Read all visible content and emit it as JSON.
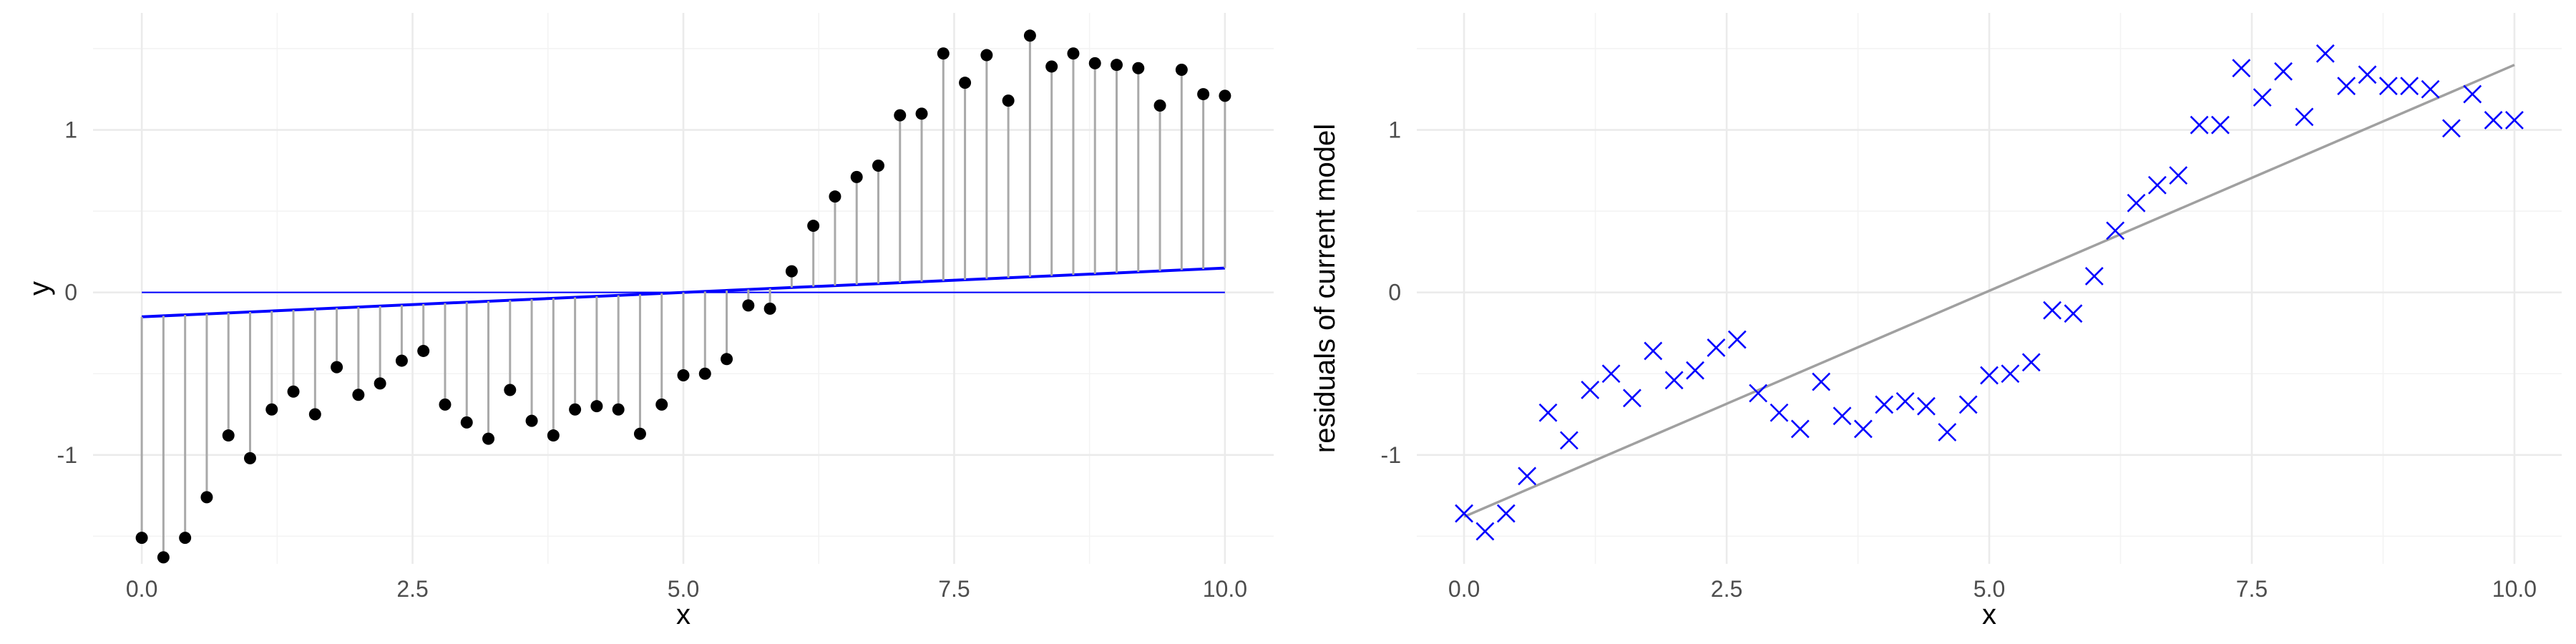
{
  "chart_data": [
    {
      "type": "scatter",
      "xlabel": "x",
      "ylabel": "y",
      "xlim": [
        -0.45,
        10.45
      ],
      "ylim": [
        -1.67,
        1.72
      ],
      "x_ticks": [
        0,
        2.5,
        5,
        7.5,
        10
      ],
      "x_tick_labels": [
        "0.0",
        "2.5",
        "5.0",
        "7.5",
        "10.0"
      ],
      "y_ticks": [
        -1,
        0,
        1
      ],
      "y_tick_labels": [
        "-1",
        "0",
        "1"
      ],
      "grid": true,
      "x": [
        0.0,
        0.2,
        0.4,
        0.6,
        0.8,
        1.0,
        1.2,
        1.4,
        1.6,
        1.8,
        2.0,
        2.2,
        2.4,
        2.6,
        2.8,
        3.0,
        3.2,
        3.4,
        3.6,
        3.8,
        4.0,
        4.2,
        4.4,
        4.6,
        4.8,
        5.0,
        5.2,
        5.4,
        5.6,
        5.8,
        6.0,
        6.2,
        6.4,
        6.6,
        6.8,
        7.0,
        7.2,
        7.4,
        7.6,
        7.8,
        8.0,
        8.2,
        8.4,
        8.6,
        8.8,
        9.0,
        9.2,
        9.4,
        9.6,
        9.8,
        10.0
      ],
      "series": [
        {
          "type": "stem",
          "color": "#000000",
          "y": [
            -1.51,
            -1.63,
            -1.51,
            -1.26,
            -0.88,
            -1.02,
            -0.72,
            -0.61,
            -0.75,
            -0.46,
            -0.63,
            -0.56,
            -0.42,
            -0.36,
            -0.69,
            -0.8,
            -0.9,
            -0.6,
            -0.79,
            -0.88,
            -0.72,
            -0.7,
            -0.72,
            -0.87,
            -0.69,
            -0.51,
            -0.5,
            -0.41,
            -0.08,
            -0.1,
            0.13,
            0.41,
            0.59,
            0.71,
            0.78,
            1.09,
            1.1,
            1.47,
            1.29,
            1.46,
            1.18,
            1.58,
            1.39,
            1.47,
            1.41,
            1.4,
            1.38,
            1.15,
            1.37,
            1.22,
            1.21
          ]
        },
        {
          "type": "line",
          "color": "#0000ff",
          "x": [
            0,
            10
          ],
          "y": [
            -0.15,
            0.15
          ]
        },
        {
          "type": "hline",
          "color": "#0000ff",
          "y": 0
        }
      ]
    },
    {
      "type": "scatter",
      "xlabel": "x",
      "ylabel": "residuals of current model",
      "xlim": [
        -0.45,
        10.45
      ],
      "ylim": [
        -1.67,
        1.72
      ],
      "x_ticks": [
        0,
        2.5,
        5,
        7.5,
        10
      ],
      "x_tick_labels": [
        "0.0",
        "2.5",
        "5.0",
        "7.5",
        "10.0"
      ],
      "y_ticks": [
        -1,
        0,
        1
      ],
      "y_tick_labels": [
        "-1",
        "0",
        "1"
      ],
      "grid": true,
      "x": [
        0.0,
        0.2,
        0.4,
        0.6,
        0.8,
        1.0,
        1.2,
        1.4,
        1.6,
        1.8,
        2.0,
        2.2,
        2.4,
        2.6,
        2.8,
        3.0,
        3.2,
        3.4,
        3.6,
        3.8,
        4.0,
        4.2,
        4.4,
        4.6,
        4.8,
        5.0,
        5.2,
        5.4,
        5.6,
        5.8,
        6.0,
        6.2,
        6.4,
        6.6,
        6.8,
        7.0,
        7.2,
        7.4,
        7.6,
        7.8,
        8.0,
        8.2,
        8.4,
        8.6,
        8.8,
        9.0,
        9.2,
        9.4,
        9.6,
        9.8,
        10.0
      ],
      "series": [
        {
          "type": "points",
          "marker": "x",
          "color": "#0000ff",
          "y": [
            -1.36,
            -1.47,
            -1.36,
            -1.13,
            -0.74,
            -0.91,
            -0.6,
            -0.5,
            -0.65,
            -0.36,
            -0.54,
            -0.48,
            -0.34,
            -0.29,
            -0.62,
            -0.74,
            -0.84,
            -0.55,
            -0.76,
            -0.84,
            -0.69,
            -0.67,
            -0.7,
            -0.86,
            -0.69,
            -0.51,
            -0.5,
            -0.43,
            -0.11,
            -0.13,
            0.1,
            0.38,
            0.55,
            0.66,
            0.72,
            1.03,
            1.03,
            1.38,
            1.2,
            1.36,
            1.08,
            1.47,
            1.27,
            1.34,
            1.27,
            1.27,
            1.25,
            1.01,
            1.22,
            1.06,
            1.06
          ]
        },
        {
          "type": "line",
          "color": "#a0a0a0",
          "x": [
            0,
            10
          ],
          "y": [
            -1.38,
            1.4
          ]
        }
      ]
    }
  ]
}
